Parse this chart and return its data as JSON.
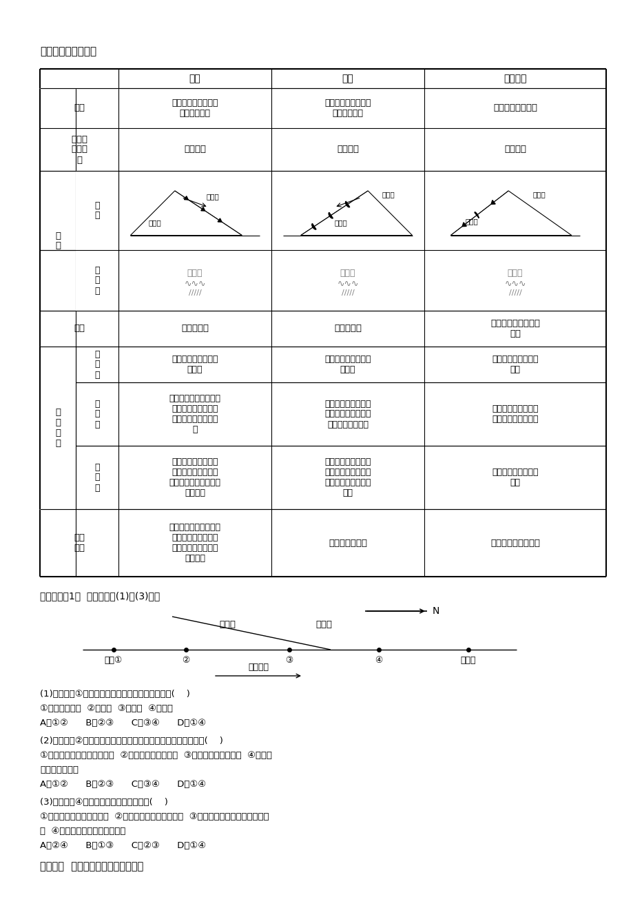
{
  "title": "锋面类型与天气特征",
  "bg_color": "#ffffff",
  "header_cold": "冷锋",
  "header_warm": "暖锋",
  "header_quasi": "准静止锋",
  "concept_label": "概念",
  "concept_cold": "冷气团主动向暖气团\n方向移动的锋",
  "concept_warm": "暖气团主动向冷气团\n方向移动的锋",
  "concept_quasi": "冷暖气团势力相当",
  "rising_label": "暖气团\n上升状\n况",
  "rising_cold": "被迫抬升",
  "rising_warm": "徐徐爬升",
  "rising_quasi": "缓缓上滑",
  "tushi_label": "图\n示",
  "fentu_label": "锋\n图",
  "tianqitu_label": "天\n气\n图",
  "rain_label": "雨区",
  "rain_cold": "主要在锋后",
  "rain_warm": "主要在锋前",
  "rain_quasi": "锋前、锋后均有、范\n围大",
  "tq_label": "天\n气\n特\n征",
  "before_label": "过\n境\n前",
  "before_cold": "单一暖气团控制，温\n暖晴朗",
  "before_warm": "单一冷气团控制，低\n温晴朗",
  "before_quasi": "单一气团控制，天气\n晴朗",
  "during_label": "过\n境\n时",
  "during_cold": "暖气团被冷气团抬升，\n常出现阴天、下雨、\n刮风、降温等天气现\n象",
  "during_warm": "暖气团沿冷气团徐徐\n爬升，冷却凝结产生\n连续性云、雨天气",
  "during_quasi": "暖气团平衡抬升或爬\n升，形成持续性降水",
  "after_label": "过\n境\n后",
  "after_cold": "冷气团替代了原来暖\n气团的位置，气压升\n高，气温和湿度骤降，\n天气晴朗",
  "after_warm": "暖气团占据了原来冷\n气团的位置，气温上\n升、气压下降、天气\n转晴",
  "after_quasi": "单一气团控制，天气\n晴朗",
  "example_label": "天气\n实例",
  "example_cold": "我国大多数降水天气，\n北方夏季的暴雨，冬\n春季节的大风、沙尘\n暴、寒潮",
  "example_warm": "一场春雨一场暖",
  "example_quasi": "江淮地区的梅雨季节",
  "section2": "【考例探究1】  读图，完成(1)～(3)题。",
  "warm_air": "暖空气",
  "cold_air": "冷空气",
  "beijing": "北京①",
  "s2": "②",
  "s3": "③",
  "s4": "④",
  "nearground": "近地面",
  "move_dir": "运动方向",
  "north": "N",
  "q1": "(1)北京处在①阶段时，天气现象和气压分布状况是(    )",
  "q1a": "①天气晴朗温暖  ②气压高  ③天气阴  ④气压低",
  "q1b": "A．①②      B．②③      C．③④      D．①④",
  "q2": "(2)北京处在②阶段时，如果有大风天气出现，可能的影响因素是(    )",
  "q2a": "①锋面两侧水平气压梯度较大  ②冷气团移动速度很快  ③暖气团含有大量水汽  ④冷气团",
  "q2b": "携带有大量沙尘",
  "q2c": "A．①②      B．②③      C．③④      D．①④",
  "q3": "(3)北京处在④阶段时，下列叙述正确的是(    )",
  "q3a": "①冷锋移出本市，天气晴朗  ②暖锋移出本市，天气晴朗  ③冷空气已经变性，气温开始回",
  "q3b": "升  ④天气已转阴，出现降水迹象",
  "q3c": "A．②④      B．①③      C．②③      D．①④",
  "final": "探究点二  低气压、高气压系统与天气"
}
